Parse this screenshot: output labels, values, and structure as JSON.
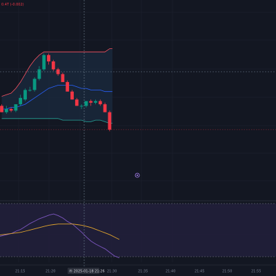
{
  "legend": {
    "text": "0.4T (-0.002)",
    "color": "#f23645"
  },
  "crosshair": {
    "time_label": "Ⓡ 2025-01-18  21:26"
  },
  "colors": {
    "background": "#131722",
    "grid": "#1e2230",
    "up_candle": "#089981",
    "down_candle": "#f23645",
    "bb_band_fill": "#1b2b3f",
    "bb_upper": "#ff5361",
    "bb_middle": "#2962ff",
    "bb_lower": "#26a69a",
    "osc_fill": "#211f3a",
    "osc_line": "#7e57c2",
    "osc_signal": "#e2a52d",
    "crosshair": "#758696",
    "current_price_line": "#f23645"
  },
  "chart_data": [
    {
      "type": "candlestick",
      "x_ticks": [
        "21:15",
        "21:20",
        "21:25",
        "21:30",
        "21:35",
        "21:40",
        "21:45",
        "21:50",
        "21:55"
      ],
      "candles": [
        {
          "time": "21:12",
          "open": 42,
          "high": 43,
          "low": 38,
          "close": 38
        },
        {
          "time": "21:13",
          "open": 38,
          "high": 42,
          "low": 37,
          "close": 40
        },
        {
          "time": "21:14",
          "open": 40,
          "high": 41,
          "low": 38,
          "close": 39
        },
        {
          "time": "21:15",
          "open": 39,
          "high": 43,
          "low": 38,
          "close": 43
        },
        {
          "time": "21:16",
          "open": 43,
          "high": 49,
          "low": 42,
          "close": 47
        },
        {
          "time": "21:17",
          "open": 46,
          "high": 53,
          "low": 45,
          "close": 52
        },
        {
          "time": "21:18",
          "open": 52,
          "high": 54,
          "low": 51,
          "close": 52
        },
        {
          "time": "21:19",
          "open": 52,
          "high": 60,
          "low": 51,
          "close": 59
        },
        {
          "time": "21:20",
          "open": 59,
          "high": 67,
          "low": 58,
          "close": 65
        },
        {
          "time": "21:21",
          "open": 65,
          "high": 75,
          "low": 64,
          "close": 74
        },
        {
          "time": "21:22",
          "open": 74,
          "high": 75,
          "low": 68,
          "close": 70
        },
        {
          "time": "21:23",
          "open": 70,
          "high": 71,
          "low": 64,
          "close": 65
        },
        {
          "time": "21:24",
          "open": 65,
          "high": 66,
          "low": 61,
          "close": 62
        },
        {
          "time": "21:25",
          "open": 62,
          "high": 63,
          "low": 57,
          "close": 57
        },
        {
          "time": "21:26",
          "open": 57,
          "high": 58,
          "low": 51,
          "close": 51
        },
        {
          "time": "21:27",
          "open": 51,
          "high": 52,
          "low": 46,
          "close": 46
        },
        {
          "time": "21:28",
          "open": 46,
          "high": 47,
          "low": 42,
          "close": 42
        },
        {
          "time": "21:29",
          "open": 42,
          "high": 43,
          "low": 40,
          "close": 42
        },
        {
          "time": "21:30",
          "open": 42,
          "high": 45,
          "low": 41,
          "close": 45
        },
        {
          "time": "21:31",
          "open": 45,
          "high": 46,
          "low": 42,
          "close": 44
        },
        {
          "time": "21:32",
          "open": 44,
          "high": 46,
          "low": 43,
          "close": 45
        },
        {
          "time": "21:33",
          "open": 45,
          "high": 46,
          "low": 42,
          "close": 43
        },
        {
          "time": "21:34",
          "open": 43,
          "high": 44,
          "low": 38,
          "close": 38
        },
        {
          "time": "21:35",
          "open": 38,
          "high": 39,
          "low": 26,
          "close": 27
        }
      ],
      "bollinger": {
        "upper": [
          48,
          49,
          50,
          53,
          57,
          62,
          67,
          71,
          74,
          76,
          76,
          76,
          76,
          76,
          76,
          76,
          76,
          76,
          76,
          76,
          76,
          76,
          76,
          78
        ],
        "middle": [
          40,
          40,
          41,
          41,
          42,
          43,
          45,
          47,
          49,
          51,
          53,
          54,
          55,
          55,
          55,
          55,
          54,
          53,
          53,
          52,
          52,
          52,
          51,
          51
        ],
        "lower": [
          34,
          34,
          34,
          34,
          34,
          34,
          34,
          34,
          34,
          34,
          34,
          34,
          34,
          33,
          33,
          33,
          33,
          33,
          32,
          32,
          33,
          33,
          32,
          31
        ]
      },
      "bollinger_extends_to": "21:35"
    },
    {
      "type": "line",
      "panel": "oscillator",
      "series": [
        {
          "values": [
            46,
            50,
            53,
            58,
            63,
            67,
            71,
            74,
            77,
            79,
            76,
            72,
            66,
            62,
            55,
            48,
            40,
            33,
            28,
            24,
            20,
            14,
            8,
            5
          ]
        },
        {
          "values": [
            46,
            47,
            48,
            50,
            52,
            54,
            56,
            58,
            60,
            61,
            62,
            62,
            62,
            62,
            61,
            60,
            58,
            56,
            53,
            50,
            47,
            44,
            40,
            36
          ]
        }
      ],
      "ylim": [
        0,
        100
      ]
    }
  ]
}
